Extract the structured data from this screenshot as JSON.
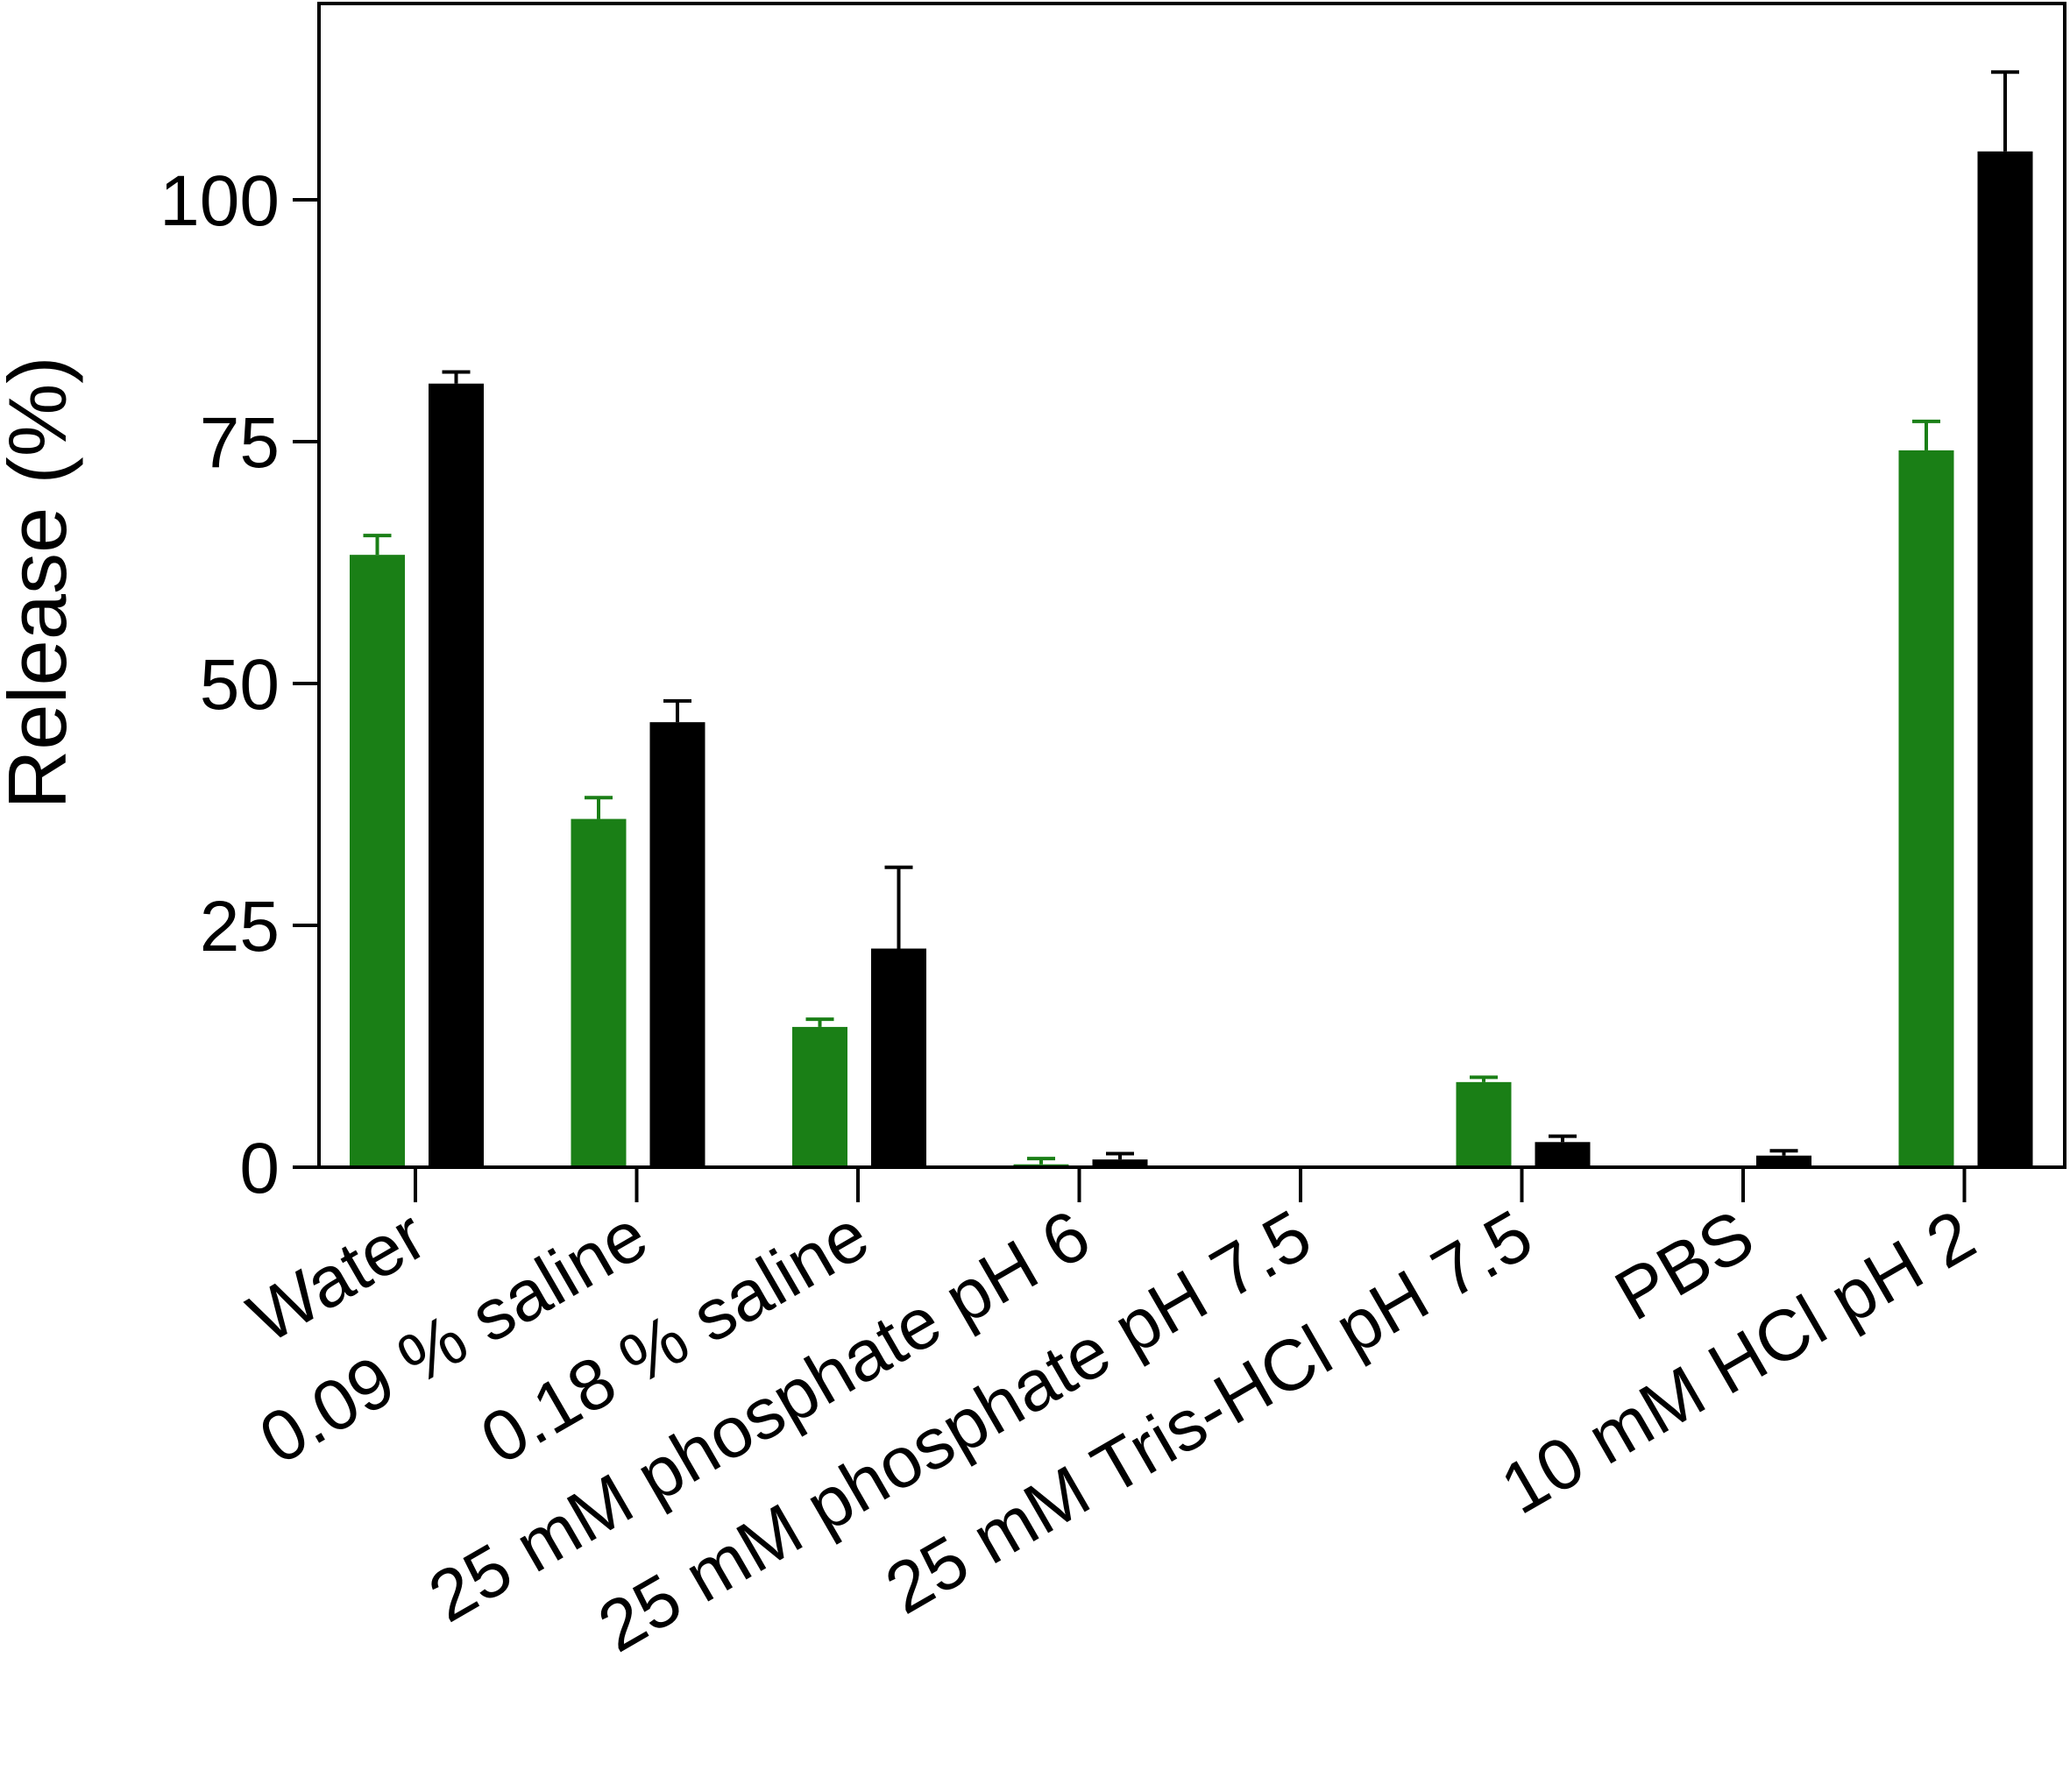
{
  "chart_data": {
    "type": "bar",
    "ylabel": "Release (%)",
    "xlabel": "",
    "ylim": [
      0,
      120
    ],
    "yticks": [
      0,
      25,
      50,
      75,
      100
    ],
    "grid": false,
    "legend": "none",
    "categories": [
      "Water",
      "0.09 % saline",
      "0.18 % saline",
      "25 mM phosphate pH 6",
      "25 mM phosphate pH 7.5",
      "25 mM Tris-HCl pH 7.5",
      "PBS",
      "10 mM HCl pH 2"
    ],
    "series": [
      {
        "color": "#1a7f16",
        "values": [
          63.3,
          36.0,
          14.5,
          0.3,
          0,
          8.8,
          0,
          74.1
        ],
        "errors": [
          2.0,
          2.2,
          0.8,
          0.6,
          0,
          0.5,
          0,
          3.0
        ]
      },
      {
        "color": "#000000",
        "values": [
          81.0,
          46.0,
          22.6,
          0.8,
          0,
          2.6,
          1.2,
          105.0
        ],
        "errors": [
          1.2,
          2.2,
          8.4,
          0.6,
          0,
          0.6,
          0.5,
          8.2
        ]
      }
    ]
  }
}
